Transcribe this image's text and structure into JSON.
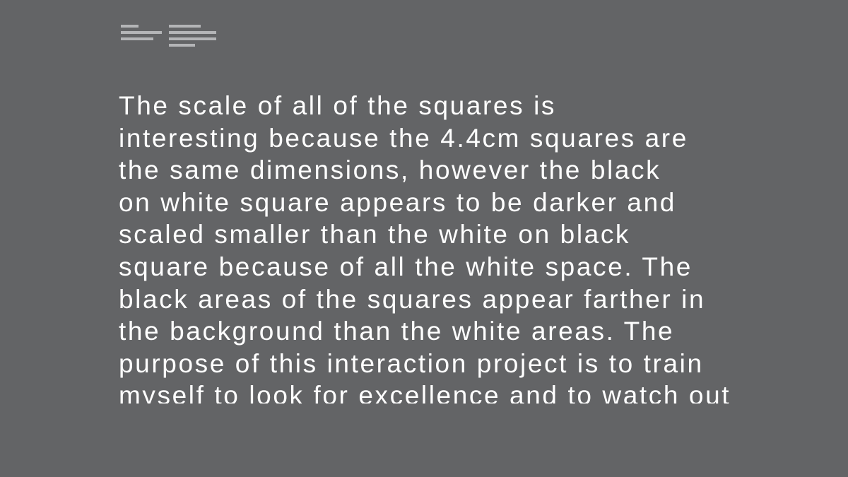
{
  "toolbar": {
    "icons": [
      {
        "name": "align-left-icon"
      },
      {
        "name": "align-justify-icon"
      }
    ]
  },
  "colors": {
    "background": "#636466",
    "text": "#ffffff",
    "icon": "#b4b5b7"
  },
  "article": {
    "text": "The scale of all of the squares is\ninteresting because the 4.4cm squares are\nthe same dimensions, however the black\non white square appears to be darker and\nscaled smaller than the white on black\nsquare because of all the white space. The\nblack areas of the squares appear farther in\nthe background than the white areas. The\npurpose of this interaction project is to train\nmyself to look for excellence and to watch out"
  }
}
